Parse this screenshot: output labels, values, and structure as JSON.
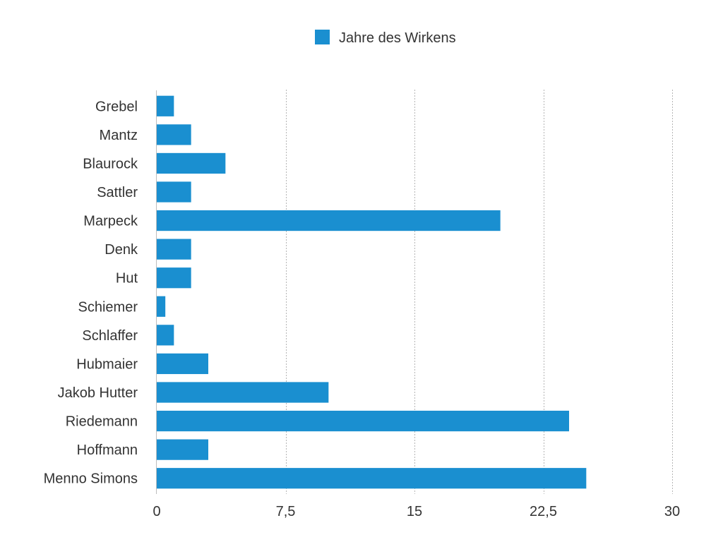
{
  "chart_data": {
    "type": "bar",
    "orientation": "horizontal",
    "categories": [
      "Grebel",
      "Mantz",
      "Blaurock",
      "Sattler",
      "Marpeck",
      "Denk",
      "Hut",
      "Schiemer",
      "Schlaffer",
      "Hubmaier",
      "Jakob Hutter",
      "Riedemann",
      "Hoffmann",
      "Menno Simons"
    ],
    "series": [
      {
        "name": "Jahre des Wirkens",
        "color": "#1a8fd0",
        "values": [
          1,
          2,
          4,
          2,
          20,
          2,
          2,
          0.5,
          1,
          3,
          10,
          24,
          3,
          25
        ]
      }
    ],
    "xlim": [
      0,
      30
    ],
    "x_ticks": [
      0,
      7.5,
      15,
      22.5,
      30
    ],
    "x_tick_labels": [
      "0",
      "7,5",
      "15",
      "22,5",
      "30"
    ],
    "grid": "vertical dashed",
    "legend": {
      "position": "top-center",
      "label": "Jahre des Wirkens"
    }
  }
}
